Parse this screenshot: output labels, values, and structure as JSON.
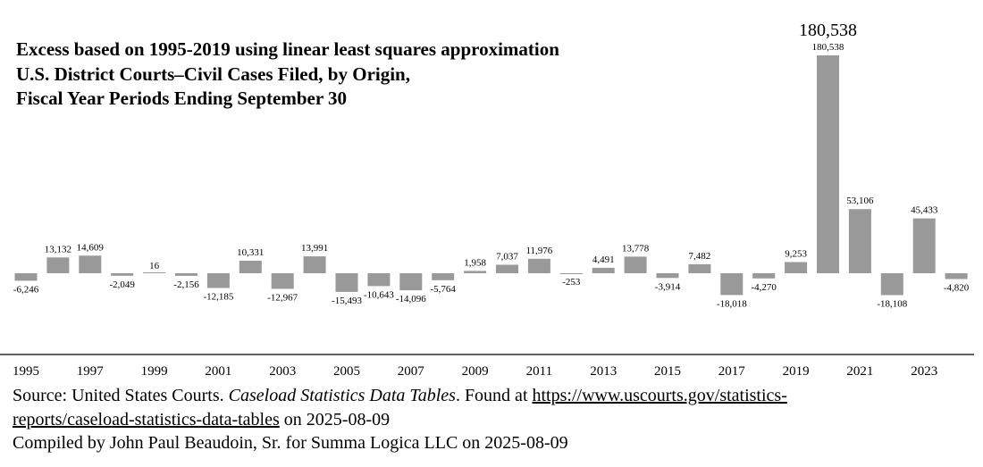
{
  "title_lines": [
    "Excess based on 1995-2019 using linear least squares approximation",
    "U.S. District Courts–Civil Cases Filed, by Origin,",
    "Fiscal Year Periods Ending September 30"
  ],
  "peak_callout": "180,538",
  "footer": {
    "source_prefix": "Source: United States Courts. ",
    "source_title": "Caseload Statistics Data Tables",
    "source_mid": ". Found at ",
    "source_url_line1": "https://www.uscourts.gov/statistics-",
    "source_url_line2": "reports/caseload-statistics-data-tables",
    "source_suffix": " on 2025-08-09",
    "compiled": "Compiled by John Paul Beaudoin, Sr. for Summa Logica LLC on 2025-08-09"
  },
  "colors": {
    "bar": "#999999",
    "axis": "#000000",
    "text": "#000000"
  },
  "chart_data": {
    "type": "bar",
    "categories": [
      "1995",
      "1996",
      "1997",
      "1998",
      "1999",
      "2000",
      "2001",
      "2002",
      "2003",
      "2004",
      "2005",
      "2006",
      "2007",
      "2008",
      "2009",
      "2010",
      "2011",
      "2012",
      "2013",
      "2014",
      "2015",
      "2016",
      "2017",
      "2018",
      "2019",
      "2020",
      "2021",
      "2022",
      "2023",
      "2024"
    ],
    "values": [
      -6246,
      13132,
      14609,
      -2049,
      16,
      -2156,
      -12185,
      10331,
      -12967,
      13991,
      -15493,
      -10643,
      -14096,
      -5764,
      1958,
      7037,
      11976,
      -253,
      4491,
      13778,
      -3914,
      7482,
      -18018,
      -4270,
      9253,
      180538,
      53106,
      -18108,
      45433,
      -4820
    ],
    "data_labels": [
      "-6,246",
      "13,132",
      "14,609",
      "-2,049",
      "16",
      "-2,156",
      "-12,185",
      "10,331",
      "-12,967",
      "13,991",
      "-15,493",
      "-10,643",
      "-14,096",
      "-5,764",
      "1,958",
      "7,037",
      "11,976",
      "-253",
      "4,491",
      "13,778",
      "-3,914",
      "7,482",
      "-18,018",
      "-4,270",
      "9,253",
      "180,538",
      "53,106",
      "-18,108",
      "45,433",
      "-4,820"
    ],
    "x_tick_labels": [
      "1995",
      "1997",
      "1999",
      "2001",
      "2003",
      "2005",
      "2007",
      "2009",
      "2011",
      "2013",
      "2015",
      "2017",
      "2019",
      "2021",
      "2023"
    ],
    "ylim": [
      -60000,
      185000
    ],
    "grid": false,
    "legend": "none"
  }
}
